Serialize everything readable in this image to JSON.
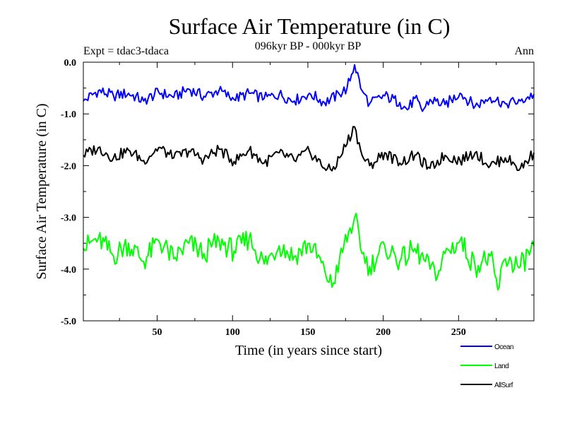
{
  "chart_data": {
    "type": "line",
    "title": "Surface Air Temperature (in C)",
    "subtitle_left": "Expt = tdac3-tdaca",
    "subtitle_center": "096kyr BP - 000kyr BP",
    "subtitle_right": "Ann",
    "xlabel": "Time (in years since start)",
    "ylabel": "Surface Air Temperature (in C)",
    "xlim": [
      1,
      300
    ],
    "ylim": [
      -5.0,
      0.0
    ],
    "x_ticks": [
      50,
      100,
      150,
      200,
      250
    ],
    "x_tick_labels": [
      "50",
      "100",
      "150",
      "200",
      "250"
    ],
    "y_ticks": [
      0.0,
      -1.0,
      -2.0,
      -3.0,
      -4.0,
      -5.0
    ],
    "y_tick_labels": [
      "0.0",
      "-1.0",
      "-2.0",
      "-3.0",
      "-4.0",
      "-5.0"
    ],
    "legend_position": "bottom-right, below plot",
    "series": [
      {
        "name": "Ocean",
        "color": "#0000ff",
        "x": [
          1,
          11,
          21,
          31,
          41,
          51,
          61,
          71,
          81,
          91,
          101,
          111,
          121,
          131,
          141,
          151,
          161,
          171,
          176,
          181,
          186,
          191,
          201,
          211,
          216,
          221,
          226,
          231,
          241,
          251,
          261,
          271,
          281,
          291,
          300
        ],
        "values": [
          -0.75,
          -0.55,
          -0.65,
          -0.6,
          -0.75,
          -0.58,
          -0.68,
          -0.52,
          -0.66,
          -0.55,
          -0.72,
          -0.6,
          -0.7,
          -0.62,
          -0.75,
          -0.6,
          -0.78,
          -0.62,
          -0.5,
          -0.05,
          -0.55,
          -0.8,
          -0.65,
          -0.78,
          -0.92,
          -0.7,
          -0.95,
          -0.72,
          -0.82,
          -0.6,
          -0.85,
          -0.68,
          -0.8,
          -0.75,
          -0.62
        ]
      },
      {
        "name": "Land",
        "color": "#00ff00",
        "x": [
          1,
          11,
          21,
          31,
          41,
          51,
          61,
          71,
          81,
          91,
          101,
          111,
          121,
          131,
          141,
          151,
          161,
          166,
          171,
          181,
          186,
          191,
          201,
          211,
          221,
          231,
          236,
          241,
          251,
          261,
          271,
          276,
          281,
          291,
          300
        ],
        "values": [
          -3.6,
          -3.4,
          -3.75,
          -3.5,
          -3.85,
          -3.45,
          -3.8,
          -3.5,
          -3.7,
          -3.45,
          -3.65,
          -3.4,
          -3.9,
          -3.55,
          -3.75,
          -3.5,
          -4.0,
          -4.35,
          -3.8,
          -3.0,
          -3.7,
          -3.95,
          -3.55,
          -3.85,
          -3.6,
          -4.0,
          -4.15,
          -3.7,
          -3.45,
          -3.95,
          -3.75,
          -4.4,
          -3.8,
          -3.95,
          -3.55
        ]
      },
      {
        "name": "AllSurf",
        "color": "#000000",
        "x": [
          1,
          11,
          21,
          31,
          41,
          51,
          61,
          71,
          81,
          91,
          101,
          111,
          121,
          131,
          141,
          151,
          161,
          166,
          171,
          181,
          186,
          191,
          201,
          211,
          221,
          231,
          241,
          251,
          261,
          271,
          281,
          291,
          300
        ],
        "values": [
          -1.8,
          -1.65,
          -1.85,
          -1.7,
          -1.9,
          -1.65,
          -1.85,
          -1.72,
          -1.88,
          -1.68,
          -1.92,
          -1.7,
          -1.95,
          -1.75,
          -1.9,
          -1.72,
          -2.05,
          -2.1,
          -1.85,
          -1.25,
          -1.8,
          -2.0,
          -1.75,
          -1.95,
          -1.8,
          -2.05,
          -1.8,
          -1.9,
          -1.75,
          -2.0,
          -1.85,
          -2.05,
          -1.75
        ]
      }
    ]
  },
  "legend_order": [
    "Ocean",
    "Land",
    "AllSurf"
  ]
}
